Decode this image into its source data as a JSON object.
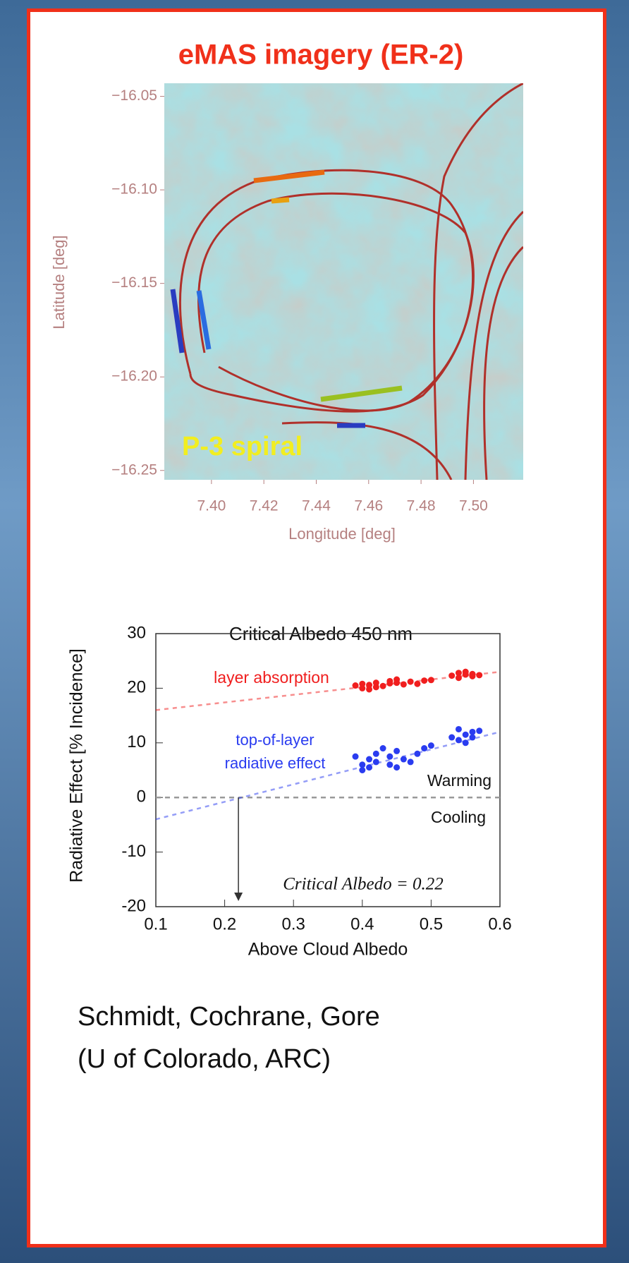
{
  "header": {
    "title": "eMAS imagery (ER-2)"
  },
  "credit": [
    "Schmidt, Cochrane, Gore",
    "(U of Colorado, ARC)"
  ],
  "chart_data": [
    {
      "type": "image",
      "xlabel": "Longitude [deg]",
      "ylabel": "Latitude [deg]",
      "annotation": "P-3 spiral",
      "xlim": [
        7.382,
        7.519
      ],
      "xticks": [
        {
          "value": 7.4,
          "label": "7.40"
        },
        {
          "value": 7.42,
          "label": "7.42"
        },
        {
          "value": 7.44,
          "label": "7.44"
        },
        {
          "value": 7.46,
          "label": "7.46"
        },
        {
          "value": 7.48,
          "label": "7.48"
        },
        {
          "value": 7.5,
          "label": "7.50"
        }
      ],
      "ylim": [
        -16.255,
        -16.043
      ],
      "yticks": [
        {
          "value": -16.05,
          "label": "−16.05"
        },
        {
          "value": -16.1,
          "label": "−16.10"
        },
        {
          "value": -16.15,
          "label": "−16.15"
        },
        {
          "value": -16.2,
          "label": "−16.20"
        },
        {
          "value": -16.25,
          "label": "−16.25"
        }
      ],
      "axis_color": "#b58080"
    },
    {
      "type": "scatter",
      "title": "Critical Albedo 450 nm",
      "xlabel": "Above Cloud Albedo",
      "ylabel": "Radiative Effect [% Incidence]",
      "xlim": [
        0.1,
        0.6
      ],
      "xticks": [
        0.1,
        0.2,
        0.3,
        0.4,
        0.5,
        0.6
      ],
      "ylim": [
        -20,
        30
      ],
      "yticks": [
        -20,
        -10,
        0,
        10,
        20,
        30
      ],
      "series": [
        {
          "name": "layer absorption",
          "color": "#f01e1e",
          "x": [
            0.39,
            0.4,
            0.4,
            0.41,
            0.41,
            0.42,
            0.42,
            0.43,
            0.44,
            0.44,
            0.45,
            0.45,
            0.46,
            0.47,
            0.48,
            0.49,
            0.5,
            0.53,
            0.54,
            0.54,
            0.55,
            0.55,
            0.56,
            0.56,
            0.57
          ],
          "values": [
            20.5,
            20.0,
            20.8,
            19.8,
            20.6,
            20.2,
            21.0,
            20.4,
            20.9,
            21.3,
            21.0,
            21.6,
            20.7,
            21.2,
            20.8,
            21.4,
            21.5,
            22.3,
            22.8,
            21.9,
            22.5,
            23.0,
            22.2,
            22.6,
            22.4
          ],
          "trend": {
            "x": [
              0.1,
              0.6
            ],
            "values": [
              16,
              23
            ]
          }
        },
        {
          "name": "top-of-layer radiative effect",
          "color": "#2a3cf0",
          "x": [
            0.39,
            0.4,
            0.4,
            0.41,
            0.41,
            0.42,
            0.42,
            0.43,
            0.44,
            0.44,
            0.45,
            0.45,
            0.46,
            0.47,
            0.48,
            0.49,
            0.5,
            0.53,
            0.54,
            0.54,
            0.55,
            0.55,
            0.56,
            0.56,
            0.57
          ],
          "values": [
            7.5,
            6.0,
            5.0,
            7.0,
            5.5,
            8.0,
            6.5,
            9.0,
            7.5,
            6.0,
            8.5,
            5.5,
            7.0,
            6.5,
            8.0,
            9.0,
            9.5,
            11.0,
            12.5,
            10.5,
            11.5,
            10.0,
            12.0,
            11.0,
            12.2
          ],
          "trend": {
            "x": [
              0.1,
              0.6
            ],
            "values": [
              -4,
              12
            ]
          }
        }
      ],
      "annotations": [
        "Warming",
        "Cooling",
        "Critical Albedo = 0.22"
      ],
      "critical_albedo": 0.22
    }
  ]
}
